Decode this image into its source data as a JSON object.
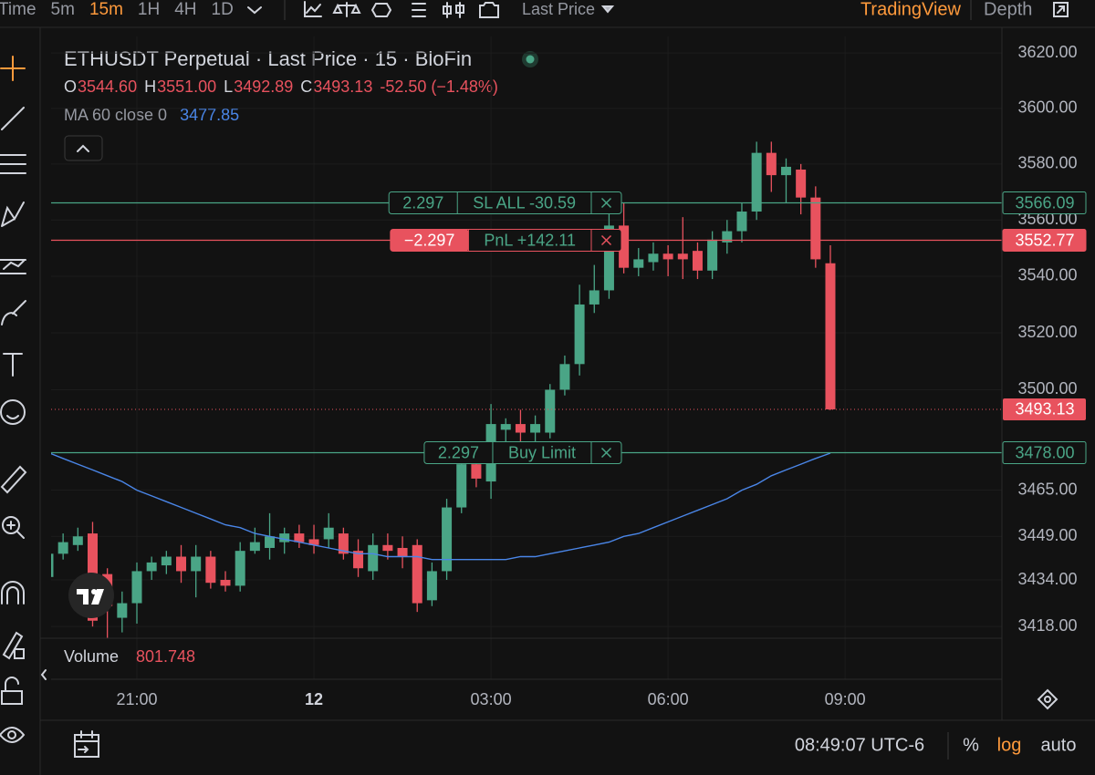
{
  "toolbar": {
    "items": [
      "Time",
      "5m",
      "15m",
      "1H",
      "4H",
      "1D"
    ],
    "active": "15m",
    "price_source": "Last Price",
    "brand": "TradingView",
    "depth": "Depth"
  },
  "chart_data": {
    "type": "candlestick",
    "title": "ETHUSDT Perpetual · Last Price · 15 · BloFin",
    "ohlc_legend": [
      {
        "key": "O",
        "value": "3544.60"
      },
      {
        "key": "H",
        "value": "3551.00"
      },
      {
        "key": "L",
        "value": "3492.89"
      },
      {
        "key": "C",
        "value": "3493.13"
      }
    ],
    "change": "-52.50 (−1.48%)",
    "log_scale": true,
    "grid": true,
    "up_color": "#4aa586",
    "down_color": "#e8525e",
    "categories": [
      null,
      null,
      null,
      null,
      null,
      null,
      "21:00",
      null,
      null,
      null,
      null,
      null,
      null,
      null,
      null,
      null,
      null,
      null,
      "12",
      null,
      null,
      null,
      null,
      null,
      null,
      null,
      null,
      null,
      null,
      null,
      "03:00",
      null,
      null,
      null,
      null,
      null,
      null,
      null,
      null,
      null,
      null,
      null,
      "06:00",
      null,
      null,
      null,
      null,
      null,
      null,
      null,
      null,
      null,
      null,
      null,
      "09:00"
    ],
    "open": [
      3435,
      3443,
      3446,
      3450,
      3436,
      3421,
      3426,
      3437,
      3439,
      3442,
      3437,
      3442,
      3434,
      3432,
      3444,
      3445,
      3447,
      3450,
      3448,
      3448,
      3450,
      3444,
      3437,
      3446,
      3445,
      3446,
      3427,
      3437,
      3459,
      3474,
      3468,
      3486,
      3488,
      3485,
      3485,
      3500,
      3509,
      3530,
      3535,
      3558,
      3543,
      3545,
      3548,
      3548,
      3549,
      3542,
      3552,
      3556,
      3563,
      3584,
      3576,
      3578,
      3568,
      3544.6,
      null
    ],
    "high": [
      3447,
      3450,
      3452,
      3454,
      3438,
      3430,
      3440,
      3442,
      3444,
      3446,
      3446,
      3444,
      3437,
      3447,
      3452,
      3457,
      3452,
      3453,
      3453,
      3457,
      3452,
      3448,
      3450,
      3450,
      3449,
      3448,
      3440,
      3462,
      3480,
      3478,
      3495,
      3490,
      3493,
      3491,
      3502,
      3512,
      3537,
      3544,
      3565,
      3566,
      3550,
      3552,
      3551,
      3561,
      3552,
      3556,
      3560,
      3566,
      3588,
      3588,
      3582,
      3580,
      3572,
      3551,
      null
    ],
    "low": [
      3430,
      3441,
      3444,
      3418,
      3414,
      3416,
      3419,
      3434,
      3436,
      3433,
      3428,
      3431,
      3430,
      3430,
      3443,
      3441,
      3443,
      3445,
      3443,
      3445,
      3441,
      3435,
      3434,
      3441,
      3438,
      3423,
      3425,
      3434,
      3457,
      3466,
      3462,
      3481,
      3482,
      3482,
      3483,
      3498,
      3505,
      3527,
      3532,
      3541,
      3540,
      3542,
      3540,
      3539,
      3539,
      3539,
      3548,
      3552,
      3560,
      3570,
      3566,
      3562,
      3543,
      3492.89,
      null
    ],
    "close": [
      3443,
      3447,
      3449,
      3420,
      3425,
      3426,
      3437,
      3440,
      3442,
      3437,
      3442,
      3433,
      3432,
      3444,
      3447,
      3449,
      3450,
      3447,
      3446,
      3452,
      3443,
      3438,
      3446,
      3444,
      3442,
      3426,
      3437,
      3459,
      3474,
      3469,
      3488,
      3488,
      3485,
      3488,
      3500,
      3509,
      3530,
      3535,
      3558,
      3543,
      3546,
      3548,
      3546,
      3546,
      3542,
      3553,
      3556,
      3563,
      3584,
      3576,
      3579,
      3568,
      3546,
      3493.13,
      null
    ],
    "ma": {
      "name": "MA 60 close 0",
      "color": "#4a86e8",
      "value_label": "3477.85",
      "values": [
        3478,
        3476,
        3474,
        3472,
        3470,
        3468,
        3465,
        3463,
        3461,
        3459,
        3457,
        3455,
        3453,
        3452,
        3450,
        3449,
        3448,
        3447,
        3446,
        3445,
        3444,
        3443,
        3443,
        3442,
        3442,
        3442,
        3441,
        3441,
        3441,
        3441,
        3441,
        3441,
        3442,
        3442,
        3443,
        3444,
        3445,
        3446,
        3447,
        3449,
        3450,
        3452,
        3454,
        3456,
        3458,
        3460,
        3462,
        3465,
        3467,
        3470,
        3472,
        3474,
        3476,
        3477.85,
        null
      ]
    },
    "ylim": [
      3414,
      3626
    ],
    "yticks": [
      {
        "value": 3418,
        "label": "3418.00"
      },
      {
        "value": 3434,
        "label": "3434.00"
      },
      {
        "value": 3449,
        "label": "3449.00"
      },
      {
        "value": 3465,
        "label": "3465.00"
      },
      {
        "value": 3500,
        "label": "3500.00"
      },
      {
        "value": 3520,
        "label": "3520.00"
      },
      {
        "value": 3540,
        "label": "3540.00"
      },
      {
        "value": 3560,
        "label": "3560.00"
      },
      {
        "value": 3580,
        "label": "3580.00"
      },
      {
        "value": 3600,
        "label": "3600.00"
      },
      {
        "value": 3620,
        "label": "3620.00"
      }
    ],
    "orders": [
      {
        "qty": "2.297",
        "label": "SL ALL -30.59",
        "price": 3566.09,
        "price_label": "3566.09",
        "color": "#4aa586",
        "qty_filled": false
      },
      {
        "qty": "−2.297",
        "label": "PnL +142.11",
        "price": 3552.77,
        "price_label": "3552.77",
        "color": "#e8525e",
        "qty_filled": true
      },
      {
        "qty": "2.297",
        "label": "Buy Limit",
        "price": 3478,
        "price_label": "3478.00",
        "color": "#4aa586",
        "qty_filled": false
      }
    ],
    "last_price": {
      "value": 3493.13,
      "label": "3493.13",
      "color": "#e8525e"
    },
    "volume": {
      "name": "Volume",
      "value_label": "801.748"
    }
  },
  "footer": {
    "clock": "08:49:07 UTC-6",
    "percent": "%",
    "log": "log",
    "auto": "auto"
  }
}
